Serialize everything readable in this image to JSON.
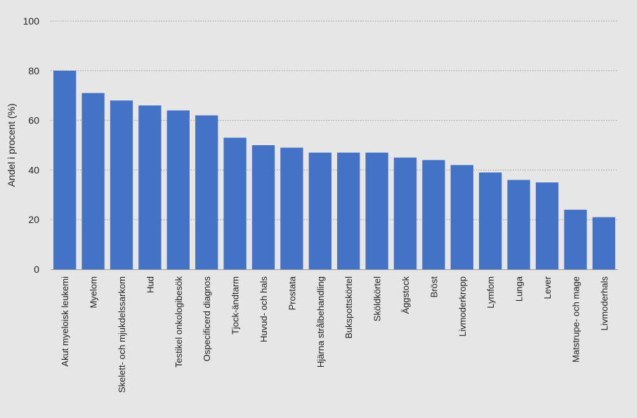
{
  "chart_data": {
    "type": "bar",
    "title": "",
    "xlabel": "",
    "ylabel": "Andel i procent (%)",
    "ylim": [
      0,
      100
    ],
    "yticks": [
      0,
      20,
      40,
      60,
      80,
      100
    ],
    "grid": true,
    "bar_color": "#4472c4",
    "categories": [
      "Akut myeloisk leukemi",
      "Myelom",
      "Skelett- och mjukdelssarkom",
      "Hud",
      "Testikel onkologibesök",
      "Ospecificerd diagnos",
      "Tjock-ändtarm",
      "Huvud- och hals",
      "Prostata",
      "Hjärna strålbehandling",
      "Bukspottskörtel",
      "Sköldkörtel",
      "Äggstock",
      "Bröst",
      "Livmoderkropp",
      "Lymfom",
      "Lunga",
      "Lever",
      "Matstrupe- och mage",
      "Livmoderhals"
    ],
    "values": [
      80,
      71,
      68,
      66,
      64,
      62,
      53,
      50,
      49,
      47,
      47,
      47,
      45,
      44,
      42,
      39,
      36,
      35,
      24,
      21
    ]
  }
}
